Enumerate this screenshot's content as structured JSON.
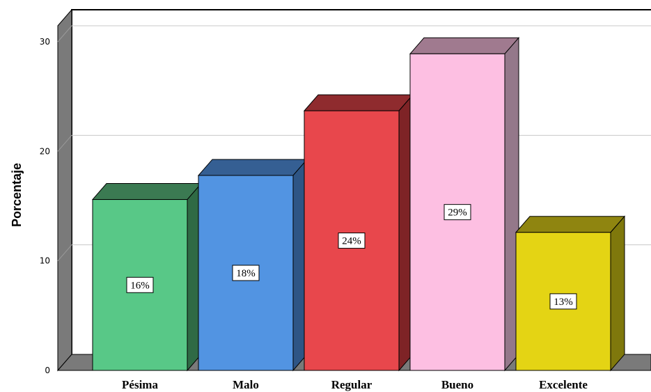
{
  "chart_data": {
    "type": "bar",
    "categories": [
      "Pésima",
      "Malo",
      "Regular",
      "Bueno",
      "Excelente"
    ],
    "values": [
      15.6,
      17.8,
      23.7,
      28.9,
      12.6
    ],
    "data_labels": [
      "16%",
      "18%",
      "24%",
      "29%",
      "13%"
    ],
    "ylabel": "Porcentaje",
    "yticks": [
      "0",
      "10",
      "20",
      "30"
    ],
    "ylim": [
      0,
      30
    ],
    "grid": true,
    "style": "3d",
    "colors": [
      {
        "face": "#58c887",
        "top": "#3b7a52",
        "side": "#2f6a45"
      },
      {
        "face": "#5294e2",
        "top": "#355f93",
        "side": "#2e5585"
      },
      {
        "face": "#e8474c",
        "top": "#8f2b2e",
        "side": "#7e2326"
      },
      {
        "face": "#fdbfe2",
        "top": "#a07a8f",
        "side": "#94788a"
      },
      {
        "face": "#e4d414",
        "top": "#8f8510",
        "side": "#7f780c"
      }
    ]
  }
}
